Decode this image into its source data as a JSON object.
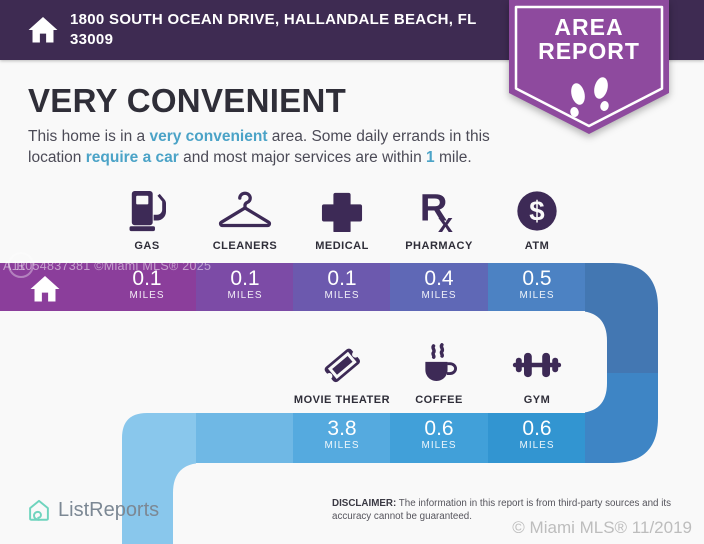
{
  "header": {
    "address_line1": "1800 SOUTH OCEAN DRIVE, HALLANDALE BEACH, FL",
    "address_line2": "33009",
    "badge_line1": "AREA",
    "badge_line2": "REPORT"
  },
  "summary": {
    "title": "VERY CONVENIENT",
    "segments": [
      {
        "t": "This home is in a "
      },
      {
        "t": "very convenient",
        "hl": true
      },
      {
        "t": " area. Some daily errands in this"
      },
      {
        "br": true
      },
      {
        "t": "location "
      },
      {
        "t": "require a car",
        "hl": true
      },
      {
        "t": " and most major services are within "
      },
      {
        "t": "1",
        "hl": true
      },
      {
        "t": " mile."
      }
    ]
  },
  "services_row1": [
    {
      "label": "GAS",
      "icon": "gas-pump-icon"
    },
    {
      "label": "CLEANERS",
      "icon": "hanger-icon"
    },
    {
      "label": "MEDICAL",
      "icon": "medical-cross-icon"
    },
    {
      "label": "PHARMACY",
      "icon": "rx-icon"
    },
    {
      "label": "ATM",
      "icon": "dollar-circle-icon"
    }
  ],
  "services_row2": [
    {
      "label": "MOVIE THEATER",
      "icon": "ticket-icon"
    },
    {
      "label": "COFFEE",
      "icon": "coffee-cup-icon"
    },
    {
      "label": "GYM",
      "icon": "dumbbell-icon"
    }
  ],
  "bar1": {
    "watermark": "A11054837381 ©Miami MLS® 2025",
    "emblem": "R",
    "cells": [
      {
        "value": "0.1",
        "unit": "MILES"
      },
      {
        "value": "0.1",
        "unit": "MILES"
      },
      {
        "value": "0.1",
        "unit": "MILES"
      },
      {
        "value": "0.4",
        "unit": "MILES"
      },
      {
        "value": "0.5",
        "unit": "MILES"
      }
    ]
  },
  "bar2": {
    "cells": [
      {
        "value": "3.8",
        "unit": "MILES"
      },
      {
        "value": "0.6",
        "unit": "MILES"
      },
      {
        "value": "0.6",
        "unit": "MILES"
      }
    ]
  },
  "footer": {
    "brand": "ListReports",
    "disclaimer_bold": "DISCLAIMER:",
    "disclaimer_line1": " The information in this report is from third-party sources and its",
    "disclaimer_line2": "accuracy cannot be guaranteed.",
    "mls_watermark": "© Miami MLS® 11/2019"
  },
  "colors": {
    "header_bg": "#3E2B52",
    "badge_bg": "#8E4A9E",
    "icon_purple": "#3D2A56",
    "highlight_teal": "#4BA3C7",
    "logo_teal": "#6FD4BE",
    "bar1_segments": [
      "#8B3E9B",
      "#7C4BA6",
      "#6C59AE",
      "#5F68B6",
      "#4C82C3",
      "#4478B6"
    ],
    "connector_segments": [
      "#4377B2",
      "#3E85C5"
    ],
    "bar2_segments": [
      "#89C7EC",
      "#6FB8E5",
      "#55AADF",
      "#41A0D9",
      "#3295D1"
    ]
  }
}
